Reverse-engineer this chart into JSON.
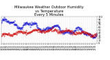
{
  "title": "Milwaukee Weather Outdoor Humidity\nvs Temperature\nEvery 5 Minutes",
  "title_fontsize": 3.8,
  "background_color": "#ffffff",
  "blue_color": "#0000cc",
  "red_color": "#cc0000",
  "grid_color": "#bbbbbb",
  "ylim": [
    0,
    100
  ],
  "num_points": 288,
  "markersize": 0.6,
  "seed": 17
}
